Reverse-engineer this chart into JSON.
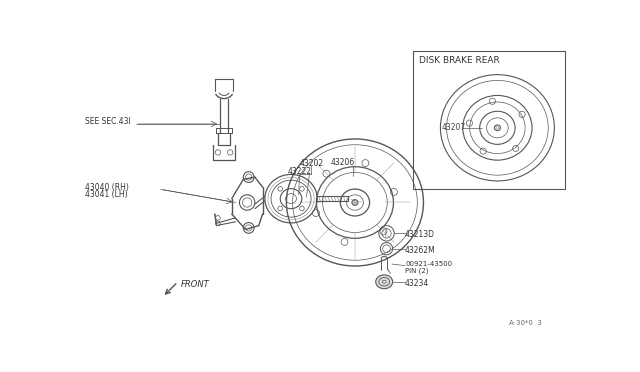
{
  "bg_color": "#ffffff",
  "line_color": "#555555",
  "fig_width": 6.4,
  "fig_height": 3.72,
  "dpi": 100,
  "labels": {
    "see_sec": "SEE SEC.43I",
    "part_43040": "43040 (RH)",
    "part_43041": "43041 (LH)",
    "part_43202": "43202",
    "part_43222": "43222",
    "part_43206": "43206",
    "part_43213D": "43213D",
    "part_43262M": "43262M",
    "part_00921": "00921-43500",
    "pin": "PIN (2)",
    "part_43234": "43234",
    "front": "FRONT",
    "disk_brake": "DISK BRAKE REAR",
    "part_43207": "43207",
    "ref_code": "A·30*0  3"
  }
}
